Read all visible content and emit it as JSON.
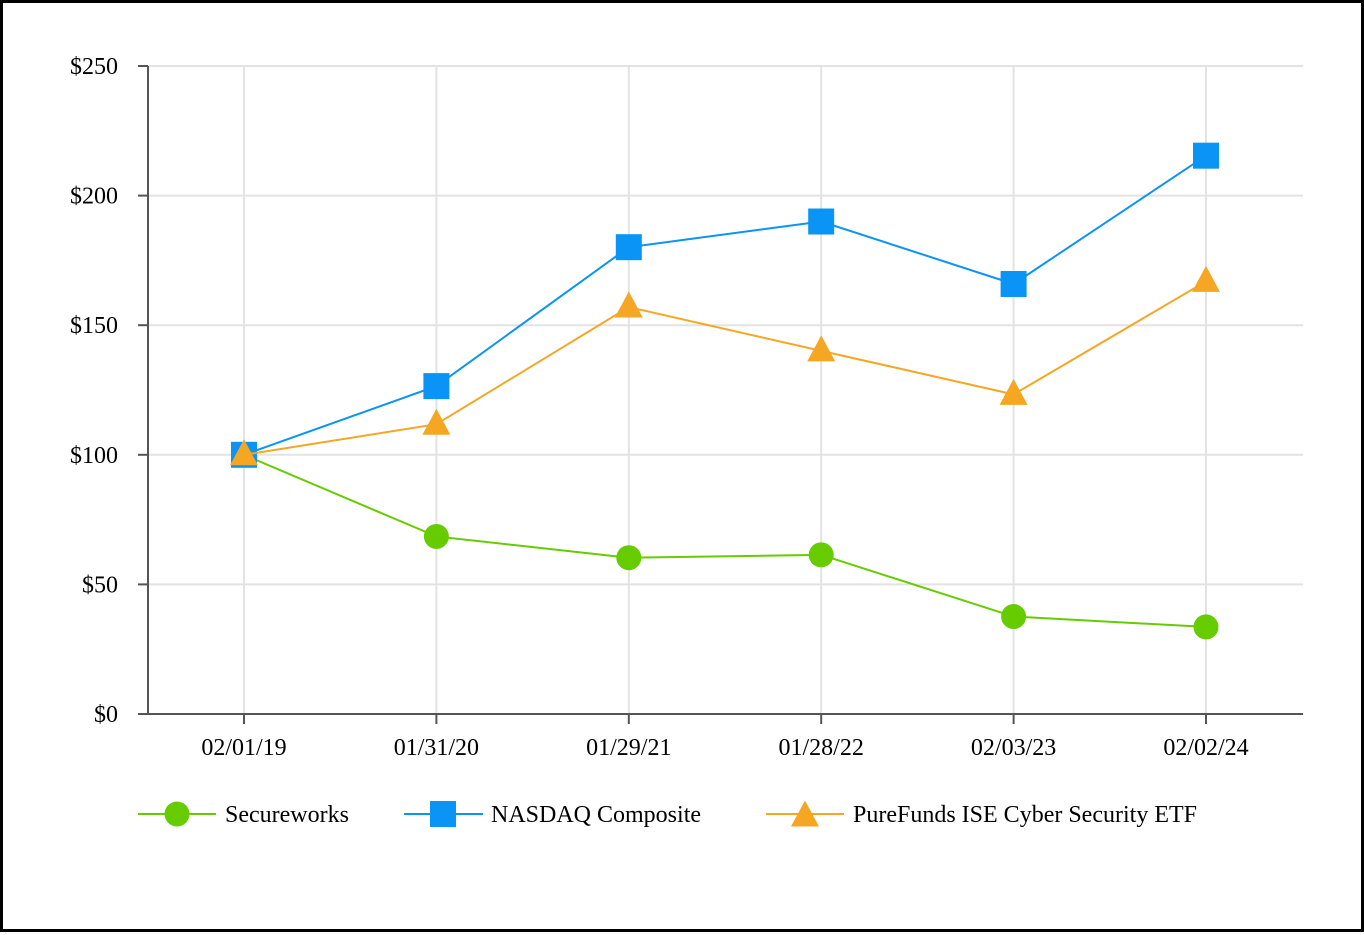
{
  "chart_data": {
    "type": "line",
    "title": "",
    "xlabel": "",
    "ylabel": "",
    "categories": [
      "02/01/19",
      "01/31/20",
      "01/29/21",
      "01/28/22",
      "02/03/23",
      "02/02/24"
    ],
    "ylim": [
      0,
      250
    ],
    "yticks": [
      0,
      50,
      100,
      150,
      200,
      250
    ],
    "ytick_labels": [
      "$0",
      "$50",
      "$100",
      "$150",
      "$200",
      "$250"
    ],
    "grid": true,
    "legend_position": "bottom",
    "series": [
      {
        "name": "Secureworks",
        "marker": "circle",
        "color": "#66cc00",
        "values": [
          100,
          68.5,
          60.3,
          61.4,
          37.6,
          33.6
        ]
      },
      {
        "name": "NASDAQ Composite",
        "marker": "square",
        "color": "#0a94f5",
        "values": [
          100,
          126.5,
          180.1,
          190.0,
          165.9,
          215.4
        ]
      },
      {
        "name": "PureFunds ISE Cyber Security ETF",
        "marker": "triangle",
        "color": "#f5a623",
        "values": [
          100,
          111.8,
          157.0,
          140.1,
          123.3,
          166.9
        ]
      }
    ]
  }
}
